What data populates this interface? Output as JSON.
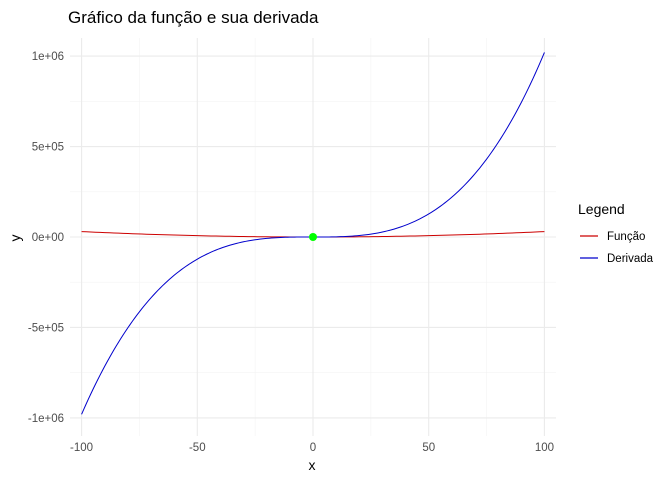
{
  "chart_data": {
    "type": "line",
    "title": "Gráfico da função e sua derivada",
    "xlabel": "x",
    "ylabel": "y",
    "xlim": [
      -105,
      105
    ],
    "ylim": [
      -1100000,
      1100000
    ],
    "x_ticks": [
      -100,
      -50,
      0,
      50,
      100
    ],
    "x_tick_labels": [
      "-100",
      "-50",
      "0",
      "50",
      "100"
    ],
    "y_ticks": [
      -1000000,
      -500000,
      0,
      500000,
      1000000
    ],
    "y_tick_labels": [
      "-1e+06",
      "-5e+05",
      "0e+00",
      "5e+05",
      "1e+06"
    ],
    "grid": true,
    "legend": {
      "title": "Legend",
      "position": "right"
    },
    "series": [
      {
        "name": "Função",
        "color": "#cc0000",
        "x": [
          -100,
          -90,
          -80,
          -70,
          -60,
          -50,
          -40,
          -30,
          -20,
          -10,
          0,
          10,
          20,
          30,
          40,
          50,
          60,
          70,
          80,
          90,
          100
        ],
        "y": [
          30000,
          24300,
          19200,
          14700,
          10800,
          7500,
          4800,
          2700,
          1200,
          300,
          0,
          300,
          1200,
          2700,
          4800,
          7500,
          10800,
          14700,
          19200,
          24300,
          30000
        ]
      },
      {
        "name": "Derivada",
        "color": "#0000cc",
        "x": [
          -100,
          -90,
          -80,
          -70,
          -60,
          -50,
          -40,
          -30,
          -20,
          -10,
          0,
          10,
          20,
          30,
          40,
          50,
          60,
          70,
          80,
          90,
          100
        ],
        "y": [
          -980000,
          -714400,
          -501760,
          -336140,
          -211680,
          -122500,
          -62720,
          -26460,
          -7840,
          -980,
          0,
          980,
          7840,
          26460,
          62720,
          122500,
          211680,
          336140,
          501760,
          714400,
          1020000
        ]
      }
    ],
    "annotations": [
      {
        "type": "point",
        "x": 0,
        "y": 0,
        "color": "#00ff00"
      }
    ]
  }
}
